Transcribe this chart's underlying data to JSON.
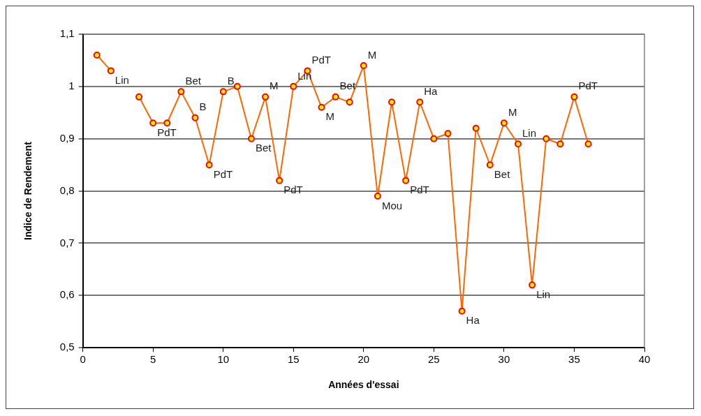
{
  "chart_data": {
    "type": "line",
    "xlabel": "Années d'essai",
    "ylabel": "Indice de Rendement",
    "x": [
      1,
      2,
      3,
      4,
      5,
      6,
      7,
      8,
      9,
      10,
      11,
      12,
      13,
      14,
      15,
      16,
      17,
      18,
      19,
      20,
      21,
      22,
      23,
      24,
      25,
      26,
      27,
      28,
      29,
      30,
      31,
      32,
      33,
      34,
      35,
      36
    ],
    "series": [
      {
        "color": "#ff6600",
        "values": [
          1.06,
          1.03,
          null,
          0.98,
          0.93,
          0.93,
          0.99,
          0.94,
          0.85,
          0.99,
          1.0,
          0.9,
          0.98,
          0.82,
          1.0,
          1.03,
          0.96,
          0.98,
          0.97,
          1.04,
          0.79,
          0.97,
          0.82,
          0.97,
          0.9,
          0.91,
          0.57,
          0.92,
          0.85,
          0.93,
          0.89,
          0.62,
          0.9,
          0.89,
          0.98,
          0.89
        ]
      }
    ],
    "xlim": [
      0,
      40
    ],
    "xticks": [
      0,
      5,
      10,
      15,
      20,
      25,
      30,
      35,
      40
    ],
    "ylim": [
      0.5,
      1.1
    ],
    "yticks": [
      {
        "value": 0.5,
        "label": "0,5"
      },
      {
        "value": 0.6,
        "label": "0,6"
      },
      {
        "value": 0.7,
        "label": "0,7"
      },
      {
        "value": 0.8,
        "label": "0,8"
      },
      {
        "value": 0.9,
        "label": "0,9"
      },
      {
        "value": 1,
        "label": "1"
      },
      {
        "value": 1.1,
        "label": "1,1"
      }
    ],
    "grid": "y",
    "legend": false,
    "marker": "circle",
    "line_style": "solid",
    "annotations": [
      {
        "text": "Lin",
        "x": 2,
        "y": 1.03
      },
      {
        "text": "PdT",
        "x": 5,
        "y": 0.93
      },
      {
        "text": "Bet",
        "x": 7,
        "y": 0.99
      },
      {
        "text": "B",
        "x": 8,
        "y": 0.94
      },
      {
        "text": "PdT",
        "x": 9,
        "y": 0.85
      },
      {
        "text": "B",
        "x": 10,
        "y": 0.99
      },
      {
        "text": "Bet",
        "x": 12,
        "y": 0.9
      },
      {
        "text": "M",
        "x": 13,
        "y": 0.98
      },
      {
        "text": "PdT",
        "x": 14,
        "y": 0.82
      },
      {
        "text": "Lin",
        "x": 15,
        "y": 1.0
      },
      {
        "text": "PdT",
        "x": 16,
        "y": 1.03
      },
      {
        "text": "M",
        "x": 17,
        "y": 0.96
      },
      {
        "text": "Bet",
        "x": 18,
        "y": 0.98
      },
      {
        "text": "M",
        "x": 20,
        "y": 1.04
      },
      {
        "text": "Mou",
        "x": 21,
        "y": 0.79
      },
      {
        "text": "PdT",
        "x": 23,
        "y": 0.82
      },
      {
        "text": "Ha",
        "x": 24,
        "y": 0.97
      },
      {
        "text": "Ha",
        "x": 27,
        "y": 0.57
      },
      {
        "text": "Bet",
        "x": 29,
        "y": 0.85
      },
      {
        "text": "M",
        "x": 30,
        "y": 0.93
      },
      {
        "text": "Lin",
        "x": 31,
        "y": 0.89
      },
      {
        "text": "Lin",
        "x": 32,
        "y": 0.62
      },
      {
        "text": "PdT",
        "x": 35,
        "y": 0.98
      }
    ]
  }
}
